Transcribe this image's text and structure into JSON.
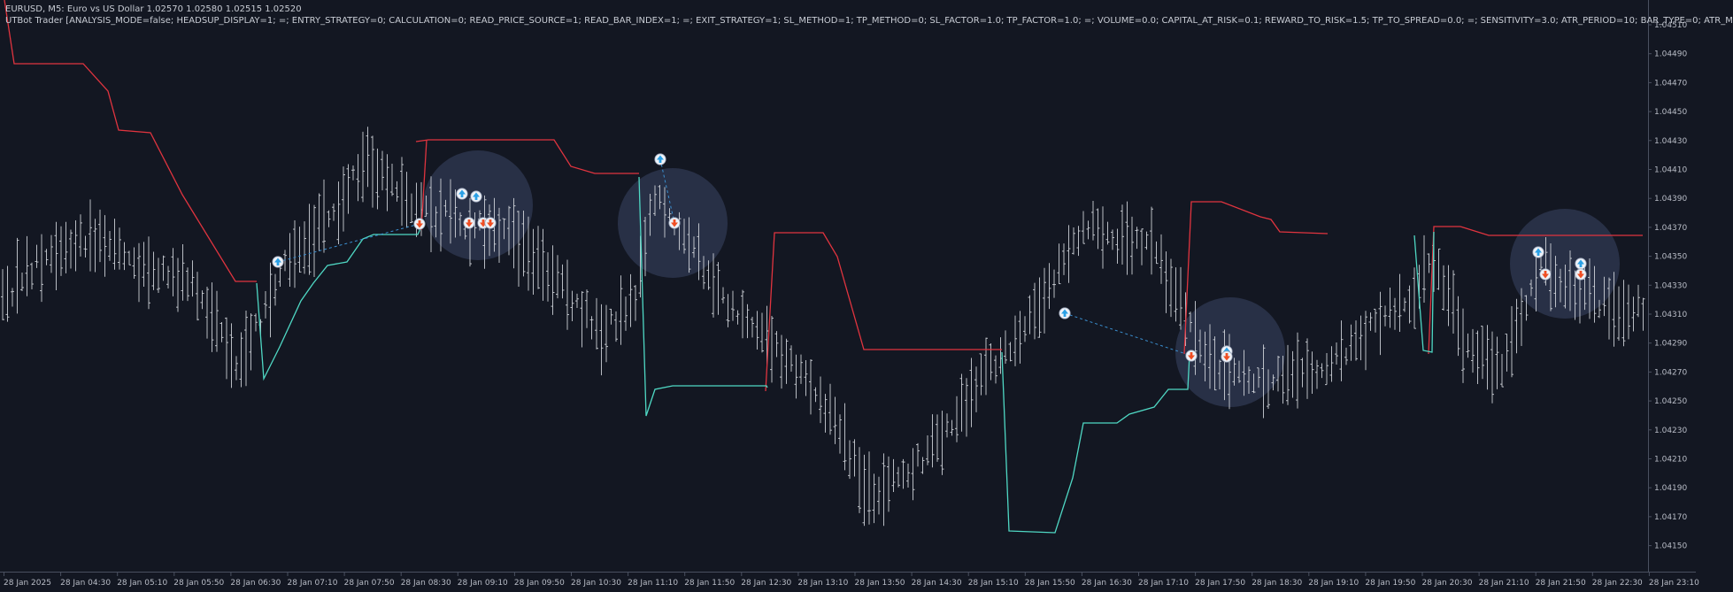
{
  "header": {
    "symbol_line": "EURUSD, M5:  Euro vs US Dollar  1.02570 1.02580 1.02515 1.02520",
    "indicator_line": "UTBot Trader [ANALYSIS_MODE=false; HEADSUP_DISPLAY=1; =; ENTRY_STRATEGY=0; CALCULATION=0; READ_PRICE_SOURCE=1; READ_BAR_INDEX=1; =; EXIT_STRATEGY=1; SL_METHOD=1; TP_METHOD=0; SL_FACTOR=1.0; TP_FACTOR=1.0; =; VOLUME=0.0; CAPITAL_AT_RISK=0.1; REWARD_TO_RISK=1.5; TP_TO_SPREAD=0.0; =; SENSITIVITY=3.0; ATR_PERIOD=10; BAR_TYPE=0; ATR_M"
  },
  "price_axis": {
    "labels": [
      "1.04510",
      "1.04490",
      "1.04470",
      "1.04450",
      "1.04430",
      "1.04410",
      "1.04390",
      "1.04370",
      "1.04350",
      "1.04330",
      "1.04310",
      "1.04290",
      "1.04270",
      "1.04250",
      "1.04230",
      "1.04210",
      "1.04190",
      "1.04170",
      "1.04150"
    ]
  },
  "time_axis": {
    "labels": [
      "28 Jan 2025",
      "28 Jan 04:30",
      "28 Jan 05:10",
      "28 Jan 05:50",
      "28 Jan 06:30",
      "28 Jan 07:10",
      "28 Jan 07:50",
      "28 Jan 08:30",
      "28 Jan 09:10",
      "28 Jan 09:50",
      "28 Jan 10:30",
      "28 Jan 11:10",
      "28 Jan 11:50",
      "28 Jan 12:30",
      "28 Jan 13:10",
      "28 Jan 13:50",
      "28 Jan 14:30",
      "28 Jan 15:10",
      "28 Jan 15:50",
      "28 Jan 16:30",
      "28 Jan 17:10",
      "28 Jan 17:50",
      "28 Jan 18:30",
      "28 Jan 19:10",
      "28 Jan 19:50",
      "28 Jan 20:30",
      "28 Jan 21:10",
      "28 Jan 21:50",
      "28 Jan 22:30",
      "28 Jan 23:10"
    ]
  },
  "colors": {
    "background": "#131722",
    "bars": "#d6d9df",
    "resistance_line": "#e0343f",
    "support_line": "#4fd8c4",
    "buy_marker": "#2aa0e6",
    "sell_marker": "#f04e23",
    "highlight": "#5a6a9a"
  },
  "icons": {
    "buy": "arrow-up-icon",
    "sell": "arrow-down-icon"
  }
}
